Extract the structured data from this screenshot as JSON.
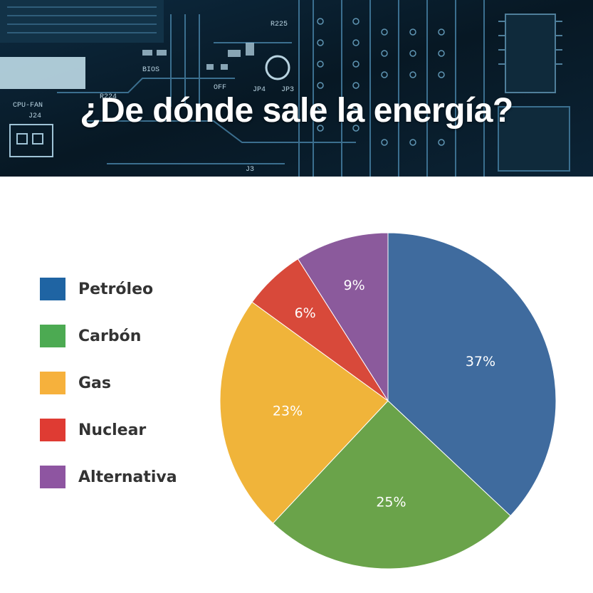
{
  "banner": {
    "title": "¿De dónde sale la energía?",
    "board_labels": [
      "CPU-FAN",
      "J24",
      "R225",
      "OFF",
      "JP4",
      "JP3",
      "R224",
      "J3",
      "BIOS"
    ]
  },
  "chart_data": {
    "type": "pie",
    "title": "",
    "categories": [
      "Petróleo",
      "Carbón",
      "Gas",
      "Nuclear",
      "Alternativa"
    ],
    "values": [
      37,
      25,
      23,
      6,
      9
    ],
    "labels": [
      "37%",
      "25%",
      "23%",
      "6%",
      "9%"
    ],
    "colors": [
      "#3f6b9e",
      "#6aa34a",
      "#f0b43a",
      "#d8493a",
      "#8b5a9c"
    ],
    "legend_colors": [
      "#1f64a3",
      "#4caa52",
      "#f6b13c",
      "#df3b33",
      "#8e55a1"
    ],
    "legend_placement": "left"
  }
}
